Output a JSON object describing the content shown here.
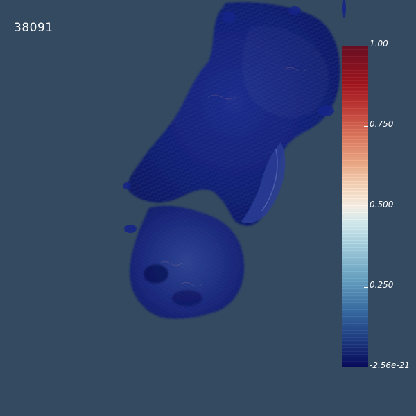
{
  "viewport": {
    "background_color": "#344a61",
    "time_step_label": "38091"
  },
  "render": {
    "description_icon": "volume-render-plume-icon",
    "dominant_color": "#0a1a6b"
  },
  "colorbar": {
    "ticks": {
      "max": "1.00",
      "t075": "0.750",
      "mid": "0.500",
      "t025": "0.250",
      "min": "-2.56e-21"
    },
    "colormap_colors": [
      "#6b0f24",
      "#c6413a",
      "#f2b08c",
      "#fdf6ec",
      "#a9d3e2",
      "#3a6fa6",
      "#080a5c"
    ]
  }
}
